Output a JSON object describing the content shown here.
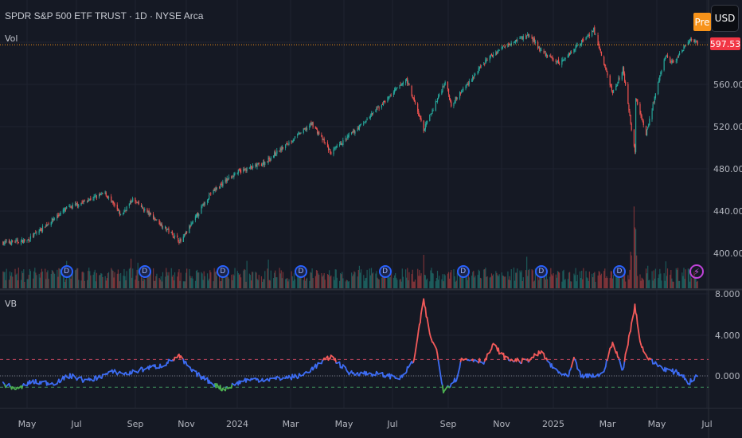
{
  "header": {
    "title": "SPDR S&P 500 ETF TRUST · 1D · NYSE Arca",
    "volume_label": "Vol",
    "session_badge": "Pre",
    "currency": "USD"
  },
  "last_price": "597.53",
  "indicator": {
    "label": "VB"
  },
  "colors": {
    "up": "#26a69a",
    "down": "#ef5350",
    "vb_line": "#3d6cf2",
    "vb_high": "#f35a5a",
    "vb_low": "#4caf50",
    "last_price": "#f23645",
    "dividend": "#2962ff",
    "earnings": "#c043d9"
  },
  "icons": {
    "dividend": "D",
    "earnings": "lightning-icon"
  },
  "dividend_markers": [
    "2023-06-16",
    "2023-09-15",
    "2023-12-15",
    "2024-03-15",
    "2024-06-21",
    "2024-09-20",
    "2024-12-20",
    "2025-03-21"
  ],
  "chart_data": [
    {
      "type": "candlestick",
      "price_axis": {
        "ticks": [
          "400.00",
          "440.00",
          "480.00",
          "520.00",
          "560.00"
        ],
        "range": [
          385,
          620
        ]
      },
      "time_axis": {
        "ticks": [
          "May",
          "Jul",
          "Sep",
          "Nov",
          "2024",
          "Mar",
          "May",
          "Jul",
          "Sep",
          "Nov",
          "2025",
          "Mar",
          "May",
          "Jul"
        ]
      },
      "close_keypoints": [
        [
          "2023-04-03",
          410
        ],
        [
          "2023-05-01",
          412
        ],
        [
          "2023-06-15",
          442
        ],
        [
          "2023-07-31",
          457
        ],
        [
          "2023-08-18",
          436
        ],
        [
          "2023-09-01",
          451
        ],
        [
          "2023-10-27",
          411
        ],
        [
          "2023-11-30",
          456
        ],
        [
          "2023-12-29",
          476
        ],
        [
          "2024-01-31",
          485
        ],
        [
          "2024-03-28",
          523
        ],
        [
          "2024-04-19",
          495
        ],
        [
          "2024-05-31",
          527
        ],
        [
          "2024-07-16",
          565
        ],
        [
          "2024-08-05",
          517
        ],
        [
          "2024-08-30",
          563
        ],
        [
          "2024-09-06",
          541
        ],
        [
          "2024-10-18",
          584
        ],
        [
          "2024-11-11",
          599
        ],
        [
          "2024-12-06",
          607
        ],
        [
          "2024-12-20",
          591
        ],
        [
          "2025-01-10",
          580
        ],
        [
          "2025-02-19",
          612
        ],
        [
          "2025-03-13",
          552
        ],
        [
          "2025-03-25",
          575
        ],
        [
          "2025-04-08",
          496
        ],
        [
          "2025-04-09",
          548
        ],
        [
          "2025-04-21",
          513
        ],
        [
          "2025-05-13",
          587
        ],
        [
          "2025-05-23",
          580
        ],
        [
          "2025-06-11",
          603
        ],
        [
          "2025-06-20",
          597.53
        ]
      ],
      "volume": "shown"
    },
    {
      "type": "line",
      "title": "VB",
      "y_ticks": [
        "0.000",
        "4.000",
        "8.000"
      ],
      "ylim": [
        -1.9,
        8.2
      ],
      "upper_band": 1.6,
      "lower_band": -1.1,
      "zero_line": 0,
      "keypoints": [
        [
          "2023-04-03",
          -0.8
        ],
        [
          "2023-04-20",
          -1.3
        ],
        [
          "2023-05-05",
          -0.6
        ],
        [
          "2023-06-01",
          -0.7
        ],
        [
          "2023-06-20",
          0.0
        ],
        [
          "2023-07-10",
          -0.5
        ],
        [
          "2023-08-10",
          0.4
        ],
        [
          "2023-08-25",
          0.2
        ],
        [
          "2023-09-20",
          0.8
        ],
        [
          "2023-10-05",
          1.0
        ],
        [
          "2023-10-25",
          1.9
        ],
        [
          "2023-11-10",
          0.4
        ],
        [
          "2023-12-15",
          -1.3
        ],
        [
          "2024-01-10",
          -0.4
        ],
        [
          "2024-02-15",
          -0.3
        ],
        [
          "2024-03-15",
          0.0
        ],
        [
          "2024-04-19",
          1.9
        ],
        [
          "2024-05-10",
          0.3
        ],
        [
          "2024-06-10",
          0.2
        ],
        [
          "2024-07-10",
          -0.2
        ],
        [
          "2024-07-25",
          1.6
        ],
        [
          "2024-08-05",
          7.4
        ],
        [
          "2024-08-12",
          4.0
        ],
        [
          "2024-08-20",
          2.5
        ],
        [
          "2024-08-28",
          -1.4
        ],
        [
          "2024-09-12",
          -0.3
        ],
        [
          "2024-09-18",
          1.6
        ],
        [
          "2024-10-01",
          1.6
        ],
        [
          "2024-10-15",
          1.4
        ],
        [
          "2024-10-25",
          3.0
        ],
        [
          "2024-11-10",
          1.6
        ],
        [
          "2024-12-01",
          1.4
        ],
        [
          "2024-12-20",
          2.3
        ],
        [
          "2025-01-02",
          0.8
        ],
        [
          "2025-01-20",
          -0.2
        ],
        [
          "2025-01-27",
          1.6
        ],
        [
          "2025-02-05",
          -0.1
        ],
        [
          "2025-03-01",
          0.1
        ],
        [
          "2025-03-13",
          3.2
        ],
        [
          "2025-03-25",
          0.6
        ],
        [
          "2025-04-04",
          5.0
        ],
        [
          "2025-04-08",
          6.9
        ],
        [
          "2025-04-15",
          3.0
        ],
        [
          "2025-04-25",
          1.5
        ],
        [
          "2025-05-15",
          0.6
        ],
        [
          "2025-06-01",
          0.2
        ],
        [
          "2025-06-10",
          -0.7
        ],
        [
          "2025-06-20",
          0.1
        ]
      ]
    }
  ]
}
